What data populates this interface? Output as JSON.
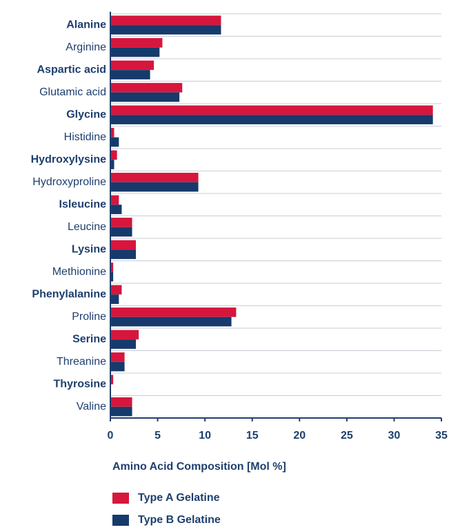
{
  "chart_data": {
    "type": "barh",
    "xlabel": "Amino Acid Composition [Mol %]",
    "categories": [
      "Alanine",
      "Arginine",
      "Aspartic acid",
      "Glutamic acid",
      "Glycine",
      "Histidine",
      "Hydroxylysine",
      "Hydroxyproline",
      "Isleucine",
      "Leucine",
      "Lysine",
      "Methionine",
      "Phenylalanine",
      "Proline",
      "Serine",
      "Threanine",
      "Thyrosine",
      "Valine"
    ],
    "series": [
      {
        "name": "Type A Gelatine",
        "color": "#d6163d",
        "values": [
          11.7,
          5.5,
          4.6,
          7.6,
          34.1,
          0.4,
          0.7,
          9.3,
          0.9,
          2.3,
          2.7,
          0.3,
          1.2,
          13.3,
          3.0,
          1.5,
          0.3,
          2.3
        ]
      },
      {
        "name": "Type B Gelatine",
        "color": "#163a6b",
        "values": [
          11.7,
          5.2,
          4.2,
          7.3,
          34.1,
          0.9,
          0.4,
          9.3,
          1.2,
          2.3,
          2.7,
          0.3,
          0.9,
          12.8,
          2.7,
          1.5,
          0,
          2.3
        ]
      }
    ],
    "xlim": [
      0,
      35
    ],
    "xticks": [
      0,
      5,
      10,
      15,
      20,
      25,
      30,
      35
    ],
    "grid": true
  }
}
